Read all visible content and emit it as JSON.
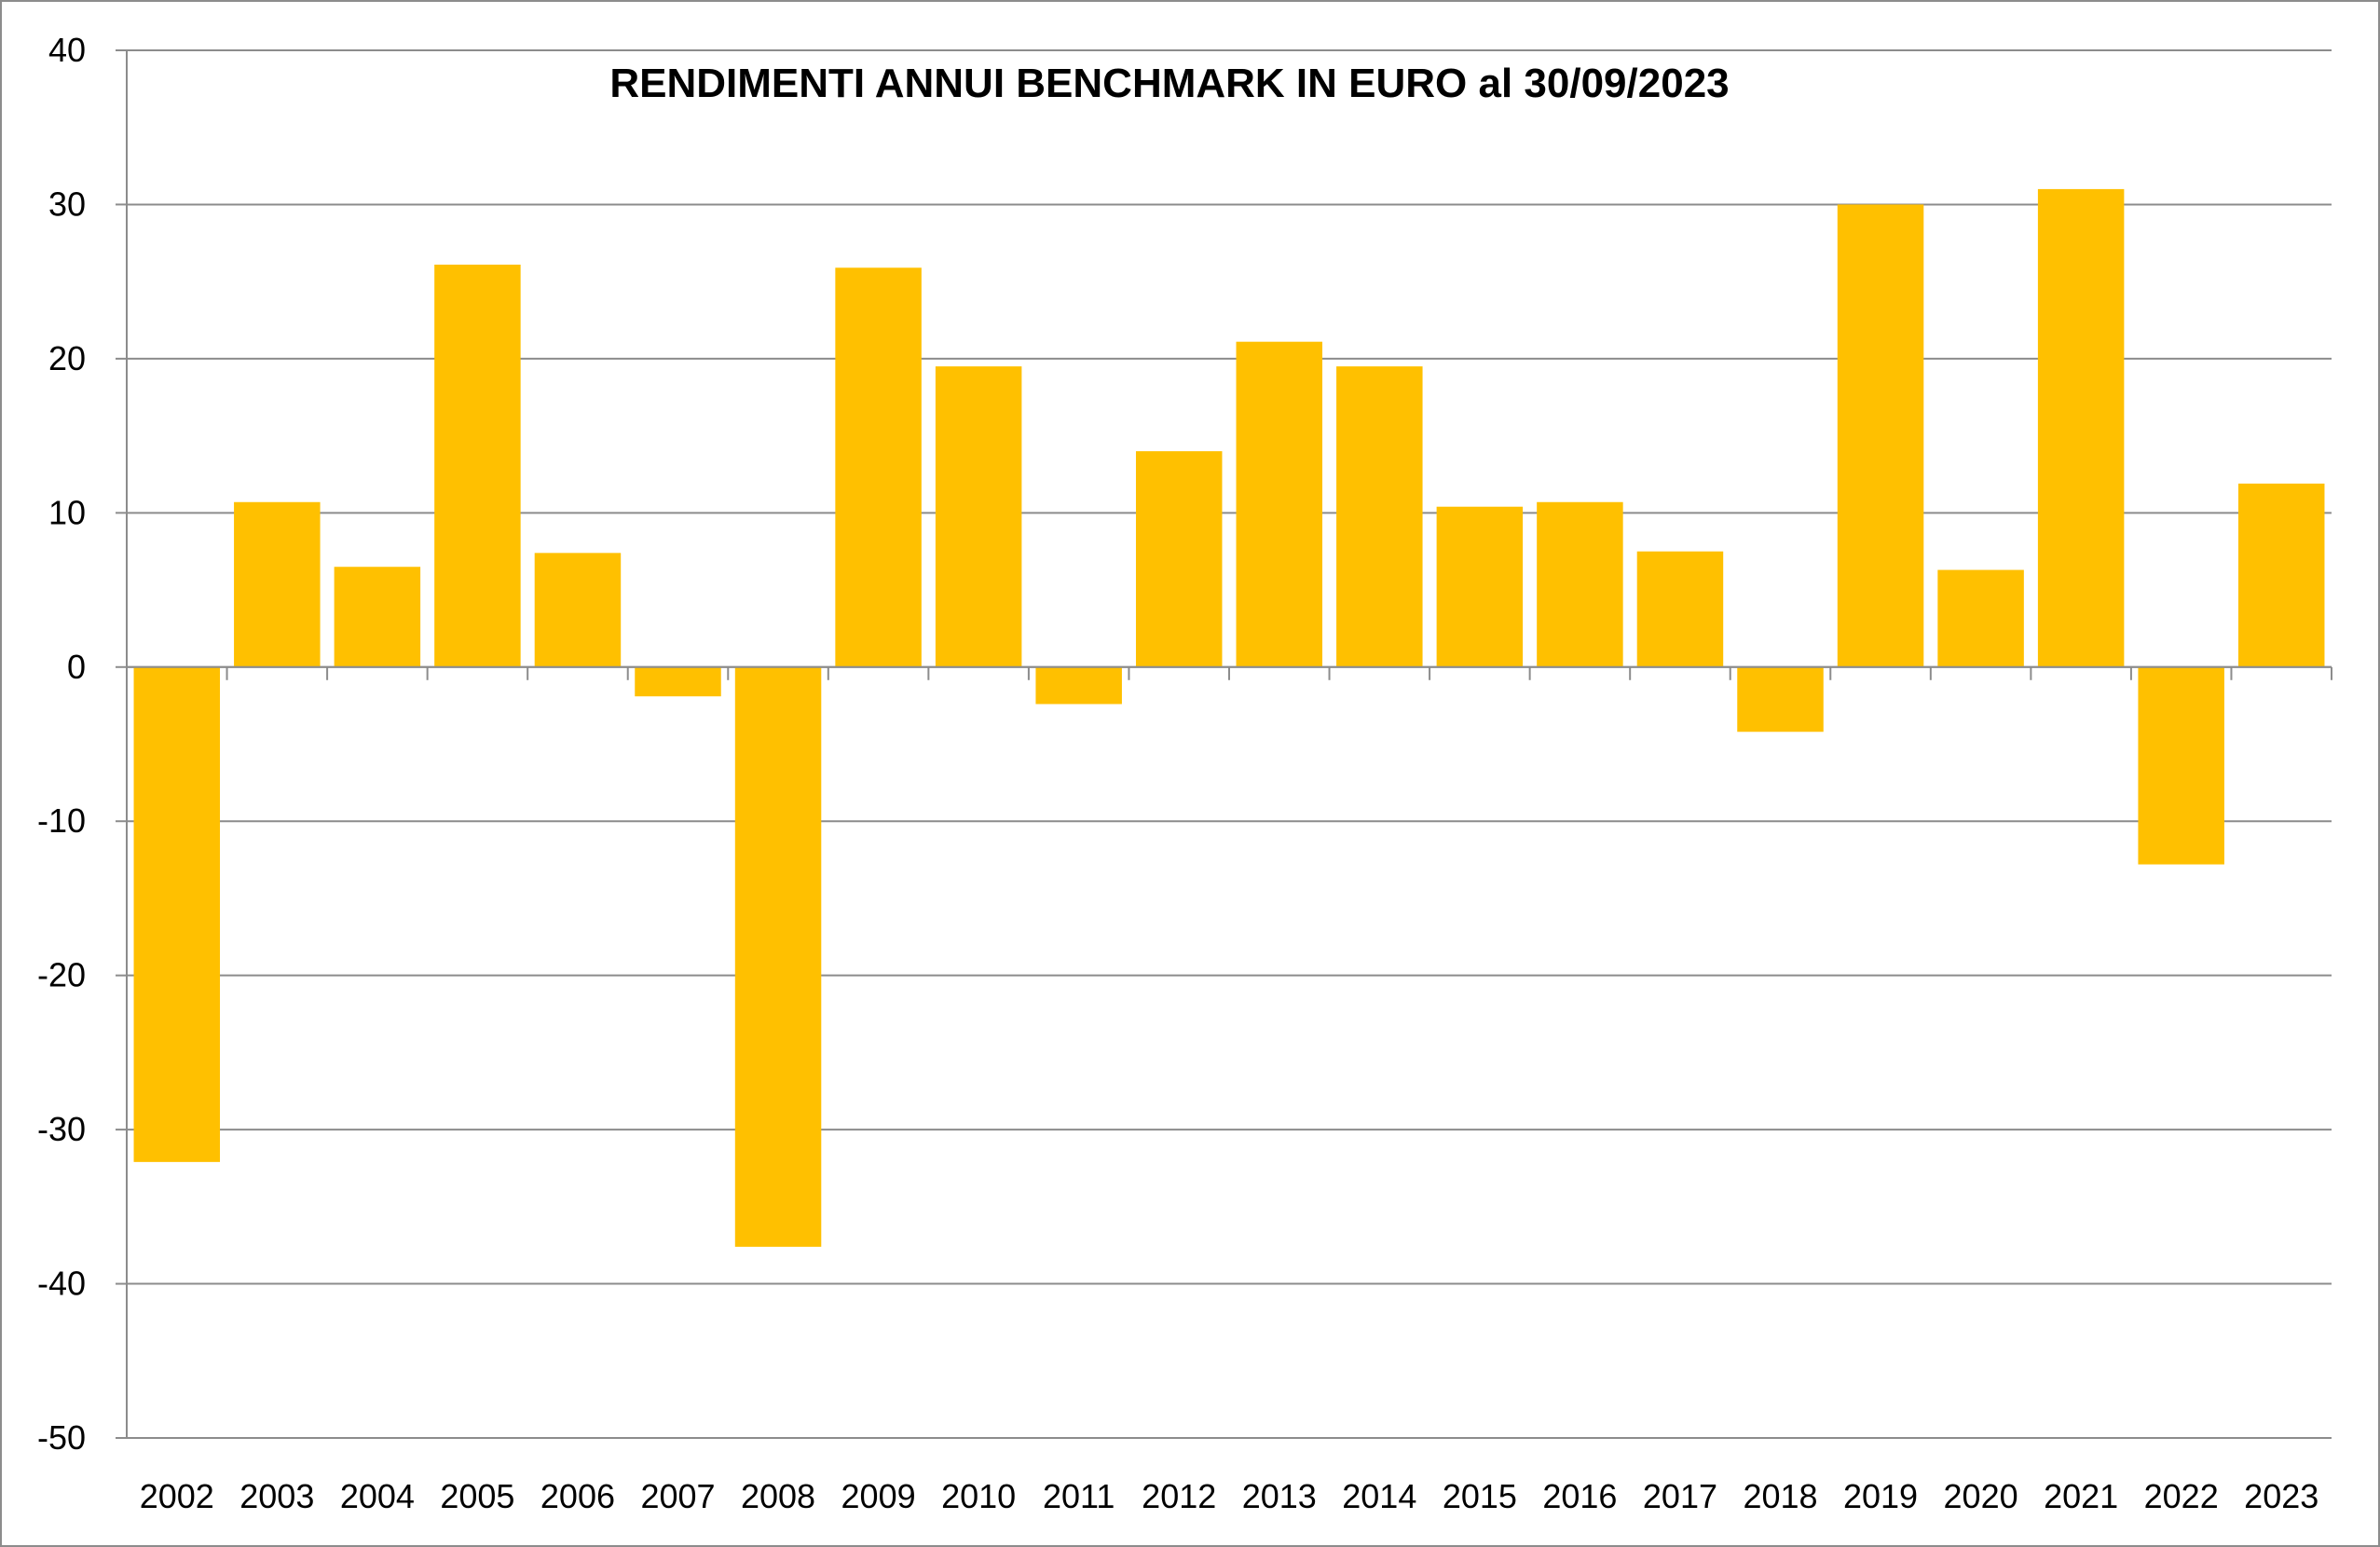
{
  "chart_data": {
    "type": "bar",
    "title": "RENDIMENTI ANNUI BENCHMARK IN EURO al 30/09/2023",
    "xlabel": "",
    "ylabel": "",
    "categories": [
      "2002",
      "2003",
      "2004",
      "2005",
      "2006",
      "2007",
      "2008",
      "2009",
      "2010",
      "2011",
      "2012",
      "2013",
      "2014",
      "2015",
      "2016",
      "2017",
      "2018",
      "2019",
      "2020",
      "2021",
      "2022",
      "2023"
    ],
    "values": [
      -32.1,
      10.7,
      6.5,
      26.1,
      7.4,
      -1.9,
      -37.6,
      25.9,
      19.5,
      -2.4,
      14.0,
      21.1,
      19.5,
      10.4,
      10.7,
      7.5,
      -4.2,
      30.0,
      6.3,
      31.0,
      -12.8,
      11.9
    ],
    "ylim": [
      -50,
      40
    ],
    "yticks": [
      "40",
      "30",
      "20",
      "10",
      "0",
      "-10",
      "-20",
      "-30",
      "-40",
      "-50"
    ],
    "ytick_values": [
      40,
      30,
      20,
      10,
      0,
      -10,
      -20,
      -30,
      -40,
      -50
    ],
    "grid": true,
    "legend": "none",
    "bar_color": "#FFC000",
    "grid_color": "#8C8C8C"
  }
}
